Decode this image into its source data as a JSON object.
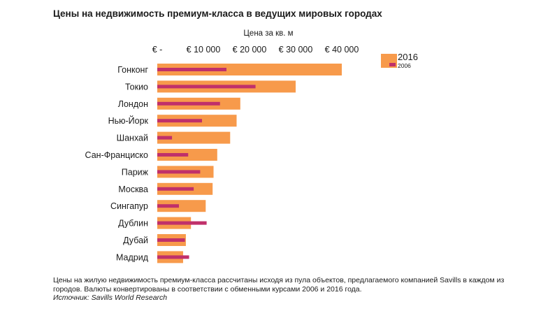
{
  "chart_data": {
    "type": "bar",
    "title": "Цены на недвижимость премиум-класса в ведущих мировых городах",
    "xlabel": "Цена за кв. м",
    "xlim": [
      0,
      45000
    ],
    "tick_values": [
      0,
      10000,
      20000,
      30000,
      40000
    ],
    "tick_labels": [
      "€ -",
      "€ 10 000",
      "€ 20 000",
      "€ 30 000",
      "€ 40 000"
    ],
    "categories": [
      "Гонконг",
      "Токио",
      "Лондон",
      "Нью-Йорк",
      "Шанхай",
      "Сан-Франциско",
      "Париж",
      "Москва",
      "Сингапур",
      "Дублин",
      "Дубай",
      "Мадрид"
    ],
    "series": [
      {
        "name": "2016",
        "color": "#f79a4b",
        "values": [
          40000,
          30000,
          18000,
          17200,
          15800,
          13000,
          12200,
          12000,
          10500,
          7300,
          6200,
          5600
        ]
      },
      {
        "name": "2006",
        "color": "#c0306a",
        "values": [
          15000,
          21300,
          13600,
          9700,
          3200,
          6700,
          9300,
          7900,
          4700,
          10700,
          6000,
          6900
        ]
      }
    ],
    "legend_position": "top-right",
    "grid": false
  },
  "footnote": {
    "text": "Цены на жилую недвижимость премиум-класса рассчитаны исходя из пула объектов, предлагаемого компанией Savills в каждом из городов. Валюты конвертированы в соответствии с обменными курсами 2006 и 2016 года.",
    "source": "Источник: Savills World Research"
  }
}
